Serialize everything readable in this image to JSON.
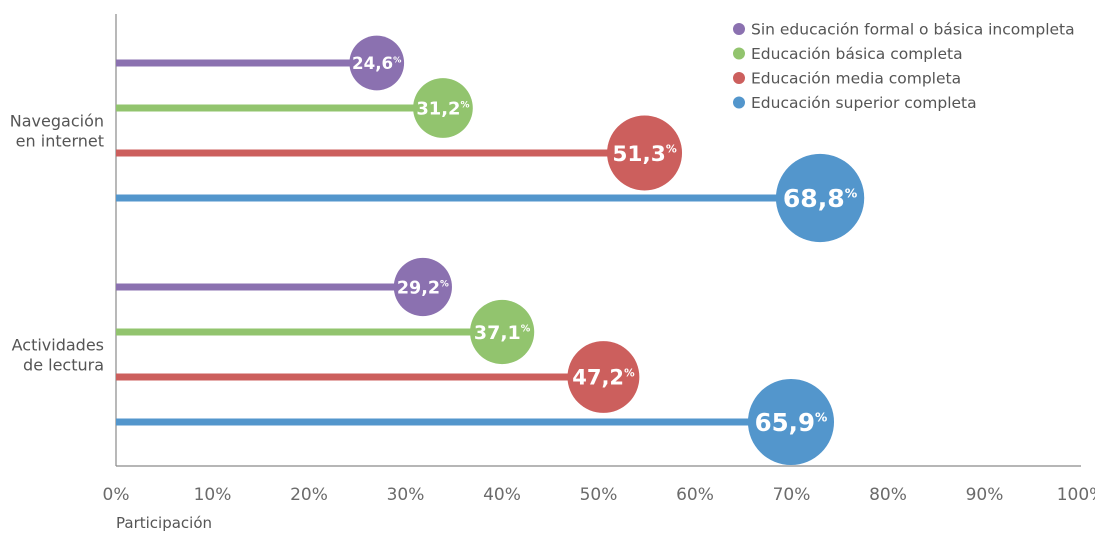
{
  "chart_data": {
    "type": "bar",
    "orientation": "horizontal",
    "style": "lollipop",
    "categories": [
      "Navegación en internet",
      "Actividades de lectura"
    ],
    "category_lines": [
      [
        "Navegación",
        "en internet"
      ],
      [
        "Actividades",
        "de lectura"
      ]
    ],
    "series": [
      {
        "name": "Sin educación formal o básica incompleta",
        "color": "#8b71b0",
        "values": [
          24.6,
          29.2
        ],
        "labels": [
          "24,6",
          "29,2"
        ]
      },
      {
        "name": "Educación básica completa",
        "color": "#92c46e",
        "values": [
          31.2,
          37.1
        ],
        "labels": [
          "31,2",
          "37,1"
        ]
      },
      {
        "name": "Educación media completa",
        "color": "#cc5f5d",
        "values": [
          51.3,
          47.2
        ],
        "labels": [
          "51,3",
          "47,2"
        ]
      },
      {
        "name": "Educación superior completa",
        "color": "#5396cc",
        "values": [
          68.8,
          65.9
        ],
        "labels": [
          "68,8",
          "65,9"
        ]
      }
    ],
    "percent_sign": "%",
    "xlabel": "Participación",
    "ylabel": "",
    "xlim": [
      0,
      100
    ],
    "x_ticks": [
      "0%",
      "10%",
      "20%",
      "30%",
      "40%",
      "50%",
      "60%",
      "70%",
      "80%",
      "90%",
      "100%"
    ],
    "legend_position": "top-right",
    "grid": false
  }
}
